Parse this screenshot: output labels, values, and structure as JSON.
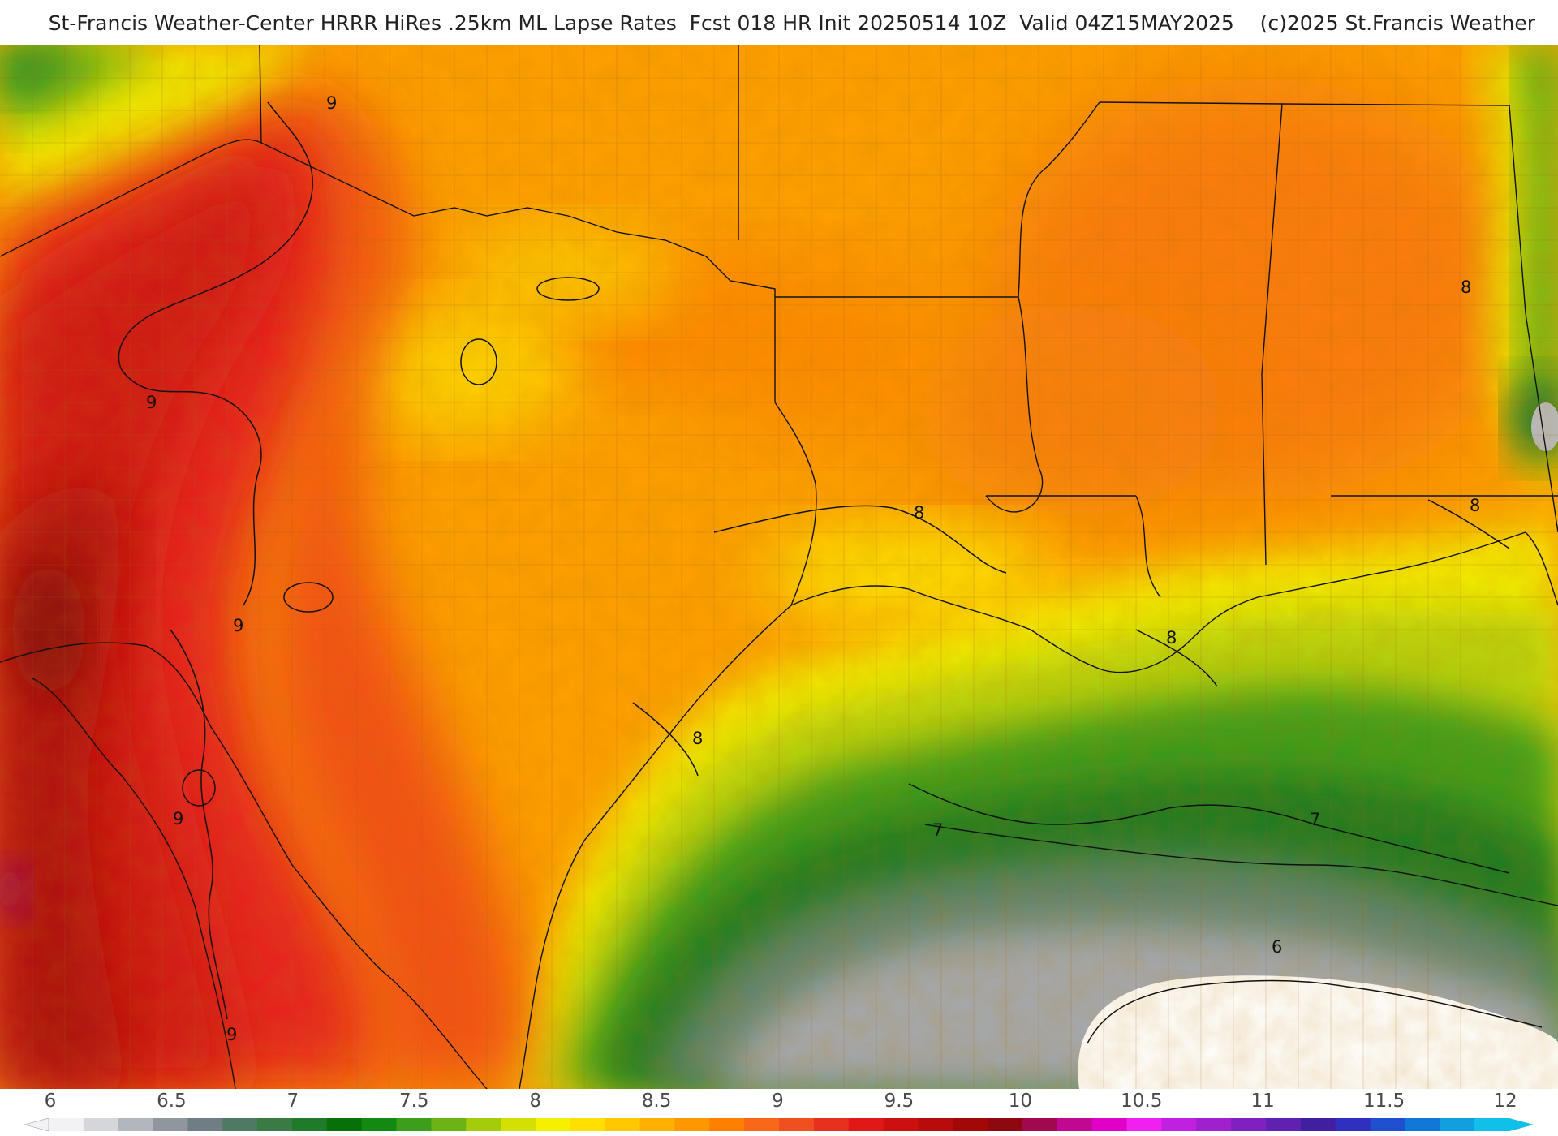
{
  "header": {
    "title": "St-Francis Weather-Center HRRR HiRes .25km ML Lapse Rates  Fcst 018 HR Init 20250514 10Z  Valid 04Z15MAY2025    (c)2025 St.Francis Weather"
  },
  "map": {
    "field": "ML Lapse Rates",
    "contour_labels": [
      "9",
      "9",
      "9",
      "9",
      "9",
      "8",
      "8",
      "8",
      "8",
      "8",
      "7",
      "7",
      "6"
    ]
  },
  "colorbar": {
    "ticks": [
      "6",
      "6.5",
      "7",
      "7.5",
      "8",
      "8.5",
      "9",
      "9.5",
      "10",
      "10.5",
      "11",
      "11.5",
      "12"
    ],
    "colors": [
      "#f2f2f4",
      "#d4d6da",
      "#b2b6bd",
      "#8f969e",
      "#6e7e84",
      "#4f7a62",
      "#3a7a44",
      "#1f7a2a",
      "#087008",
      "#128a12",
      "#3c9e1a",
      "#6cb414",
      "#a4cc0a",
      "#d4e004",
      "#f4f000",
      "#ffe000",
      "#ffc800",
      "#ffb000",
      "#ff9800",
      "#ff8000",
      "#f86818",
      "#f05020",
      "#e83020",
      "#e01818",
      "#cc1010",
      "#b80c0c",
      "#a20808",
      "#8e0810",
      "#a00850",
      "#c00890",
      "#e000c8",
      "#f020f0",
      "#c020e0",
      "#a020d0",
      "#8020c0",
      "#6020b0",
      "#4020a0",
      "#3030c0",
      "#2050d0",
      "#1078d8",
      "#10a0e0",
      "#10c0e8"
    ]
  }
}
